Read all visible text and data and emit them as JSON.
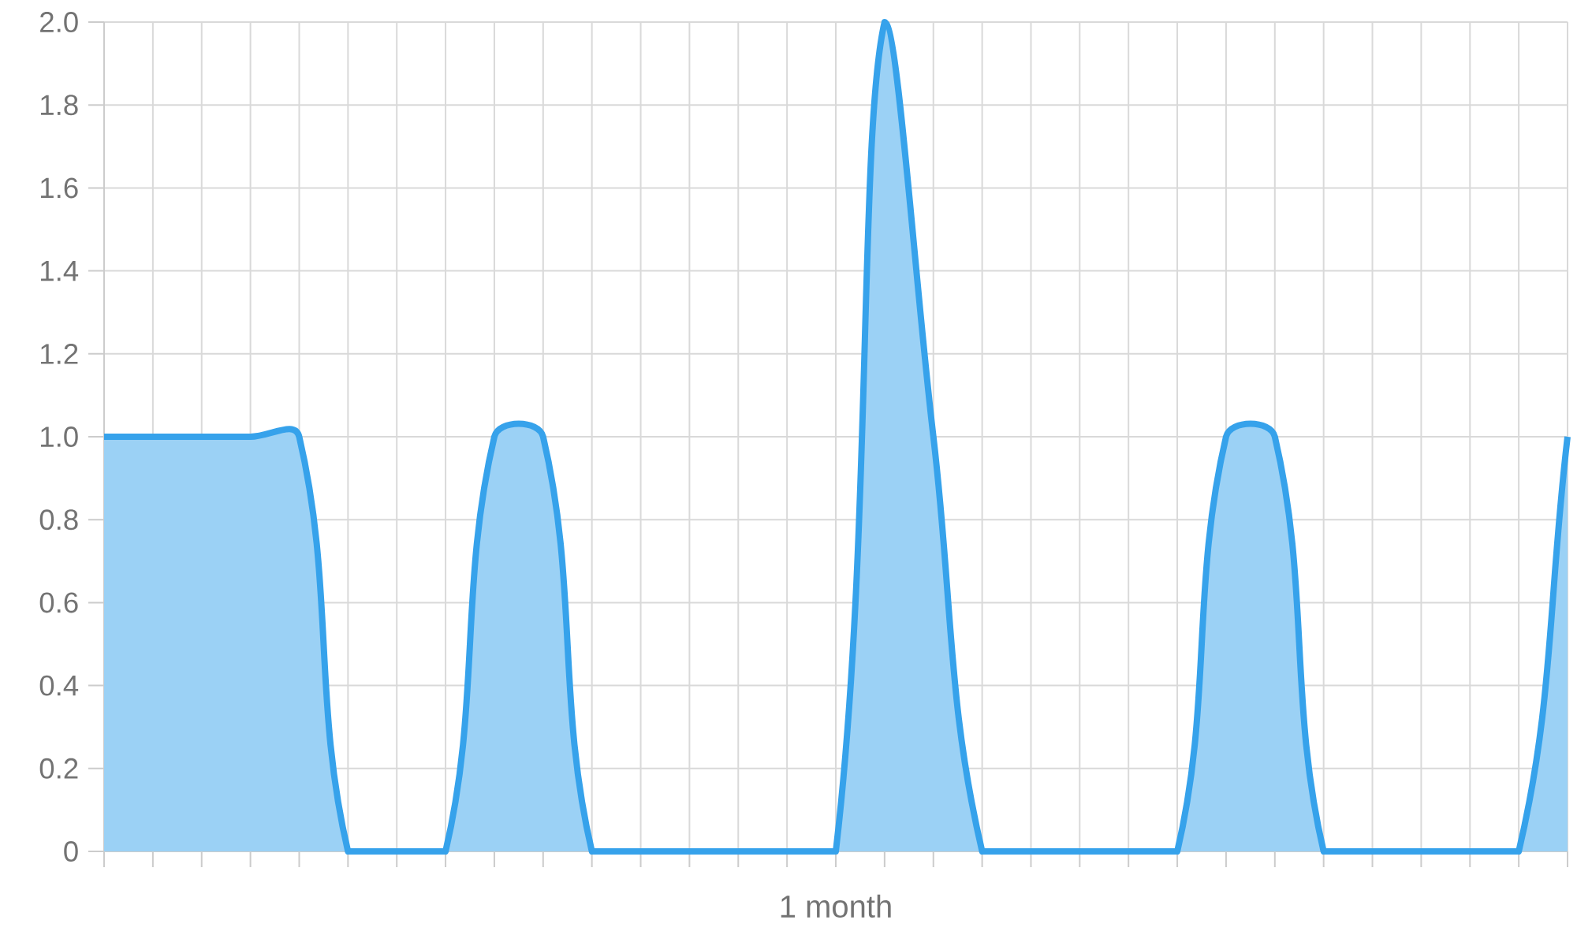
{
  "chart_data": {
    "type": "area",
    "xlabel": "1 month",
    "categories": [
      null,
      null,
      null,
      null,
      null,
      null,
      null,
      null,
      null,
      null,
      null,
      null,
      null,
      null,
      null,
      null,
      null,
      null,
      null,
      null,
      null,
      null,
      null,
      null,
      null,
      null,
      null,
      null,
      null,
      null,
      null
    ],
    "values": [
      1,
      1,
      1,
      1,
      1,
      0,
      0,
      0,
      1,
      1,
      0,
      0,
      0,
      0,
      0,
      0,
      2,
      1,
      0,
      0,
      0,
      0,
      0,
      1,
      1,
      0,
      0,
      0,
      0,
      0,
      1
    ],
    "color": "#36a2eb",
    "ylim": [
      0,
      2
    ],
    "yticks": [
      0,
      0.2,
      0.4,
      0.6,
      0.8,
      {
        "value": 1,
        "label": "1.0"
      },
      1.2,
      1.4,
      1.6,
      1.8,
      {
        "value": 2,
        "label": "2.0"
      }
    ],
    "grid": true,
    "tick_labels": "y",
    "marker": "none"
  }
}
